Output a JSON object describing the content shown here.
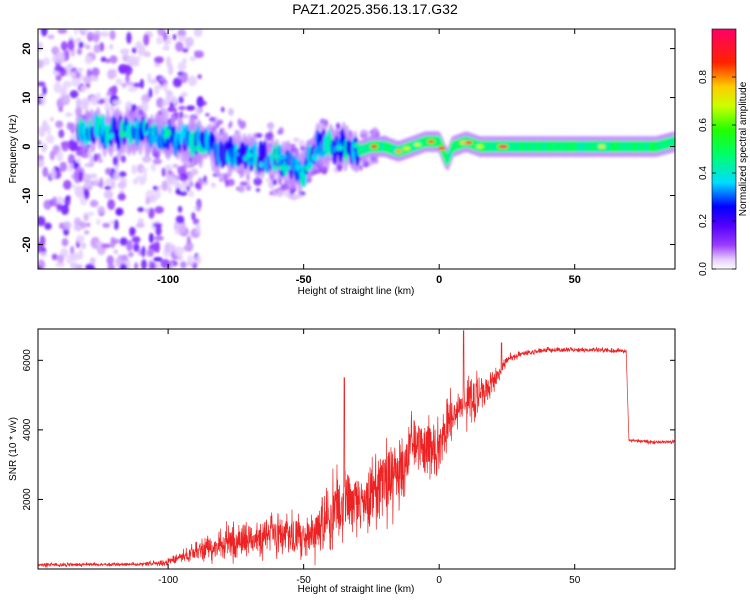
{
  "title": "PAZ1.2025.356.13.17.G32",
  "chart_data": [
    {
      "type": "heatmap",
      "xlabel": "Height of straight line (km)",
      "ylabel": "Frequency (Hz)",
      "xlim": [
        -148,
        87
      ],
      "ylim": [
        -25,
        24
      ],
      "xticks": [
        -100,
        -50,
        0,
        50
      ],
      "xtick_labels": [
        "-100",
        "-50",
        "0",
        "50"
      ],
      "yticks": [
        -20,
        -10,
        0,
        10,
        20
      ],
      "ytick_labels": [
        "-20",
        "-10",
        "0",
        "10",
        "20"
      ],
      "colorbar": {
        "label": "Normalized spectral amplitude",
        "range": [
          0,
          1
        ],
        "ticks": [
          0.0,
          0.2,
          0.4,
          0.6,
          0.8
        ],
        "tick_labels": [
          "0.0",
          "0.2",
          "0.4",
          "0.6",
          "0.8"
        ],
        "colormap": "rainbow: white-violet-purple-blue-cyan-green-yellow-red-magenta"
      },
      "ridge": {
        "x": [
          -125,
          -110,
          -100,
          -90,
          -80,
          -70,
          -60,
          -50,
          -45,
          -40,
          -35,
          -30,
          -25,
          -20,
          -15,
          -10,
          -5,
          0,
          3,
          5,
          10,
          15,
          20,
          25,
          40,
          60,
          80,
          87
        ],
        "freq": [
          3,
          3,
          2,
          1,
          -1,
          -2,
          -3,
          -5,
          0,
          0,
          0,
          -1,
          0,
          0,
          -1,
          0,
          1,
          1,
          -3,
          0,
          1,
          0,
          0,
          0,
          0,
          0,
          0,
          1
        ]
      }
    },
    {
      "type": "line",
      "xlabel": "Height of straight line (km)",
      "ylabel": "SNR (10 * v/v)",
      "xlim": [
        -148,
        87
      ],
      "ylim": [
        0,
        6900
      ],
      "xticks": [
        -100,
        -50,
        0,
        50
      ],
      "xtick_labels": [
        "-100",
        "-50",
        "0",
        "50"
      ],
      "yticks": [
        2000,
        4000,
        6000
      ],
      "ytick_labels": [
        "2000",
        "4000",
        "6000"
      ],
      "color": "#ee2222",
      "envelope": {
        "x": [
          -148,
          -110,
          -100,
          -95,
          -90,
          -80,
          -70,
          -60,
          -50,
          -45,
          -40,
          -35,
          -30,
          -25,
          -20,
          -15,
          -10,
          -5,
          0,
          5,
          10,
          15,
          20,
          25,
          30,
          40,
          50,
          60,
          69,
          70,
          80,
          87
        ],
        "mean": [
          120,
          130,
          200,
          350,
          500,
          700,
          900,
          1000,
          900,
          1100,
          1600,
          2000,
          1900,
          2100,
          2500,
          2700,
          3400,
          3600,
          3500,
          4500,
          4800,
          5000,
          5400,
          6000,
          6200,
          6300,
          6300,
          6300,
          6250,
          3700,
          3650,
          3650
        ],
        "amp": [
          80,
          80,
          150,
          250,
          400,
          700,
          800,
          900,
          900,
          1100,
          1600,
          1500,
          1400,
          1500,
          1500,
          1400,
          1300,
          1200,
          1200,
          1100,
          1100,
          800,
          500,
          200,
          120,
          100,
          100,
          100,
          100,
          80,
          80,
          80
        ]
      },
      "peaks": [
        {
          "x": -35,
          "y": 5500
        },
        {
          "x": 9,
          "y": 6850
        },
        {
          "x": 23,
          "y": 6500
        }
      ]
    }
  ]
}
